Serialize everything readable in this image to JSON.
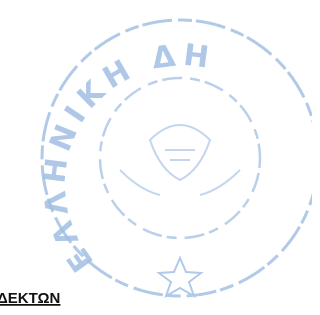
{
  "stamp": {
    "text": "ΕΛΛΗΝΙΚΗ ΔΗ"
  },
  "document": {
    "text": "ΔΕΚΤΩΝ"
  }
}
